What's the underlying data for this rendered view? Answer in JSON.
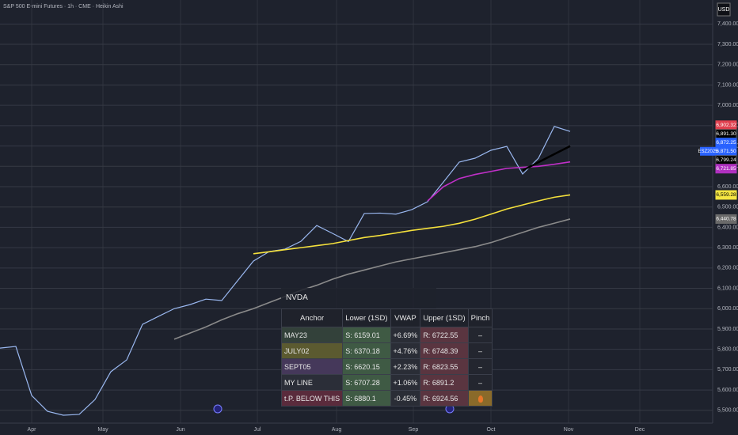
{
  "chart_data": {
    "type": "line",
    "title": "S&P 500 E-mini Futures · 1h · CME · Heikin Ashi",
    "currency": "USD",
    "x_labels": [
      "Apr",
      "May",
      "Jun",
      "Jul",
      "Aug",
      "Sep",
      "Oct",
      "Nov",
      "Dec"
    ],
    "ylim": [
      5437,
      7518
    ],
    "yticks": [
      {
        "value": 5500,
        "label": "5,500.00"
      },
      {
        "value": 5600,
        "label": "5,600.00"
      },
      {
        "value": 5700,
        "label": "5,700.00"
      },
      {
        "value": 5800,
        "label": "5,800.00"
      },
      {
        "value": 5900,
        "label": "5,900.00"
      },
      {
        "value": 6000,
        "label": "6,000.00"
      },
      {
        "value": 6100,
        "label": "6,100.00"
      },
      {
        "value": 6200,
        "label": "6,200.00"
      },
      {
        "value": 6300,
        "label": "6,300.00"
      },
      {
        "value": 6400,
        "label": "6,400.00"
      },
      {
        "value": 6500,
        "label": "6,500.00"
      },
      {
        "value": 6600,
        "label": "6,600.00"
      },
      {
        "value": 6700,
        "label": "6,700.00"
      },
      {
        "value": 6800,
        "label": "6,800.00"
      },
      {
        "value": 6900,
        "label": "6,900.00"
      },
      {
        "value": 7000,
        "label": "7,000.00"
      },
      {
        "value": 7100,
        "label": "7,100.00"
      },
      {
        "value": 7200,
        "label": "7,200.00"
      },
      {
        "value": 7300,
        "label": "7,300.00"
      },
      {
        "value": 7400,
        "label": "7,400.00"
      }
    ],
    "grid": true,
    "series": [
      {
        "color": "#9ab8f0",
        "values": [
          5806,
          5814,
          5573,
          5495,
          5476,
          5480,
          5553,
          5690,
          5748,
          5923,
          5962,
          6000,
          6020,
          6047,
          6040,
          6137,
          6234,
          6281,
          6293,
          6331,
          6409,
          6370,
          6330,
          6468,
          6470,
          6465,
          6487,
          6526,
          6623,
          6721,
          6740,
          6779,
          6798,
          6662,
          6740,
          6896,
          6871.5
        ]
      },
      {
        "color": "#8a8a8a",
        "values": [
          null,
          null,
          null,
          null,
          null,
          null,
          null,
          null,
          null,
          null,
          null,
          5850,
          5880,
          5910,
          5945,
          5975,
          6000,
          6030,
          6060,
          6090,
          6115,
          6145,
          6170,
          6190,
          6210,
          6230,
          6245,
          6260,
          6275,
          6290,
          6305,
          6325,
          6350,
          6375,
          6400,
          6420,
          6440.78
        ]
      },
      {
        "color": "#f5e13c",
        "values": [
          null,
          null,
          null,
          null,
          null,
          null,
          null,
          null,
          null,
          null,
          null,
          null,
          null,
          null,
          null,
          null,
          6270,
          6280,
          6290,
          6300,
          6310,
          6320,
          6335,
          6350,
          6360,
          6372,
          6385,
          6395,
          6405,
          6420,
          6440,
          6465,
          6490,
          6510,
          6530,
          6548,
          6559.28
        ]
      },
      {
        "color": "#c030c8",
        "values": [
          null,
          null,
          null,
          null,
          null,
          null,
          null,
          null,
          null,
          null,
          null,
          null,
          null,
          null,
          null,
          null,
          null,
          null,
          null,
          null,
          null,
          null,
          null,
          null,
          null,
          null,
          null,
          6530,
          6600,
          6640,
          6660,
          6675,
          6690,
          6695,
          6700,
          6710,
          6721.85
        ]
      },
      {
        "color": "#000000",
        "values": [
          null,
          null,
          null,
          null,
          null,
          null,
          null,
          null,
          null,
          null,
          null,
          null,
          null,
          null,
          null,
          null,
          null,
          null,
          null,
          null,
          null,
          null,
          null,
          null,
          null,
          null,
          null,
          null,
          null,
          null,
          null,
          null,
          null,
          6680,
          6720,
          6760,
          6799.24
        ]
      }
    ],
    "price_labels": [
      {
        "value": 6902.32,
        "label": "6,902.32",
        "color": "#e0404f"
      },
      {
        "value": 6891.3,
        "label": "6,891.30",
        "color": "#000000"
      },
      {
        "value": 6872.25,
        "label": "6,872.25",
        "color": "#2962ff"
      },
      {
        "value": 6871.5,
        "label": "6,871.50",
        "color": "#2962ff",
        "ticker": "ESZ2025"
      },
      {
        "value": 6799.24,
        "label": "6,799.24",
        "color": "#000000"
      },
      {
        "value": 6721.85,
        "label": "6,721.85",
        "color": "#b030c0"
      },
      {
        "value": 6559.28,
        "label": "6,559.28",
        "color": "#f5e642"
      },
      {
        "value": 6440.78,
        "label": "6,440.78",
        "color": "#6a6a6a"
      }
    ]
  },
  "table": {
    "title": "NVDA",
    "columns": [
      "Anchor",
      "Lower (1SD)",
      "VWAP",
      "Upper (1SD)",
      "Pinch"
    ],
    "rows": [
      [
        "MAY23",
        "S: 6159.01",
        "+6.69%",
        "R: 6722.55",
        "–"
      ],
      [
        "JULY02",
        "S: 6370.18",
        "+4.76%",
        "R: 6748.39",
        "–"
      ],
      [
        "SEPT05",
        "S: 6620.15",
        "+2.23%",
        "R: 6823.55",
        "–"
      ],
      [
        "MY LINE",
        "S: 6707.28",
        "+1.06%",
        "R: 6891.2",
        "–"
      ],
      [
        "t.P. BELOW THIS",
        "S: 6880.1",
        "-0.45%",
        "R: 6924.56"
      ]
    ]
  }
}
